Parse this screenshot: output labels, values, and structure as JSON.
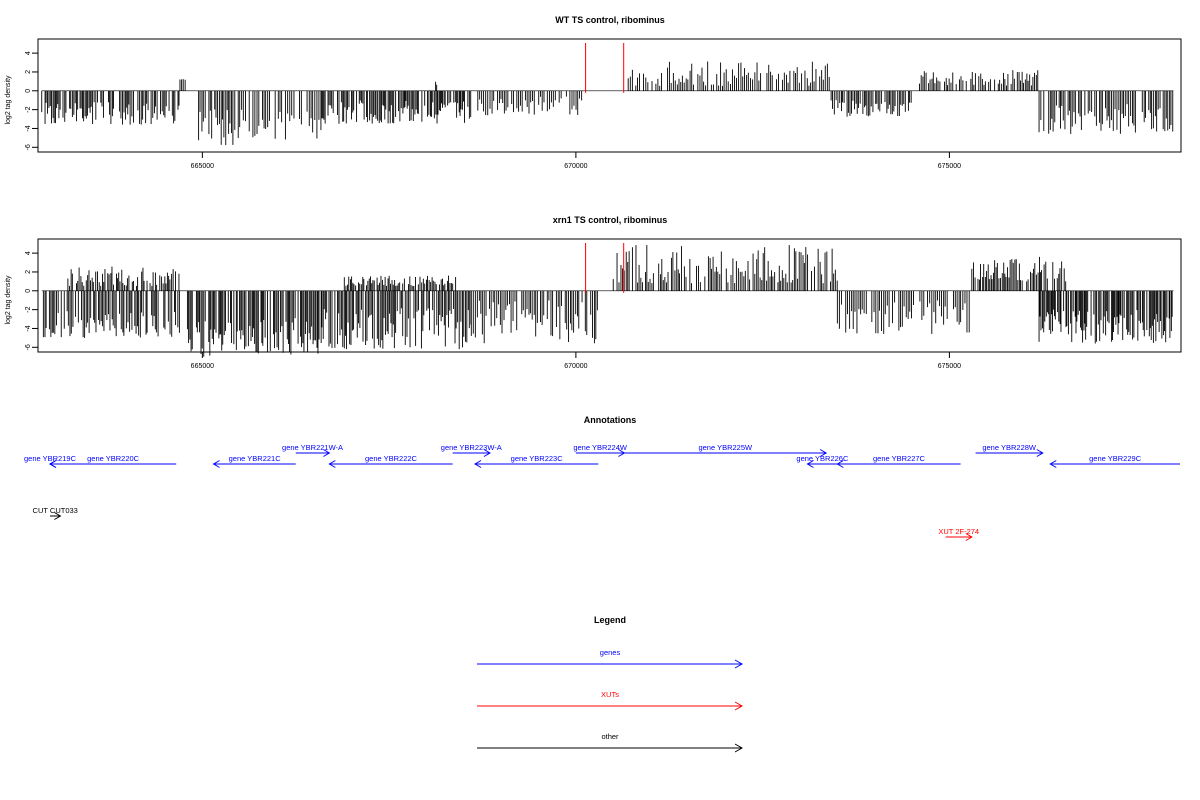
{
  "colors": {
    "genes": "#0000ff",
    "xuts": "#ff0000",
    "other": "#000000",
    "marker": "#ff0000"
  },
  "chart_data": [
    {
      "type": "bar",
      "title": "WT TS control, ribominus",
      "xlabel": "",
      "ylabel": "log2 tag density",
      "xlim": [
        662800,
        678100
      ],
      "ylim": [
        -6.5,
        5.5
      ],
      "yticks": [
        -6,
        -4,
        -2,
        0,
        2,
        4
      ],
      "xticks": [
        665000,
        670000,
        675000
      ],
      "xtick_labels": [
        "665000",
        "670000",
        "675000"
      ],
      "marker_lines": [
        670130,
        670640
      ],
      "seed": 7,
      "profile": [
        {
          "from": 662850,
          "to": 664700,
          "min": -3.6,
          "max": -1.2
        },
        {
          "from": 664700,
          "to": 664800,
          "min": 1.0,
          "max": 1.7
        },
        {
          "from": 664950,
          "to": 665500,
          "min": -5.8,
          "max": -1.8
        },
        {
          "from": 665500,
          "to": 666600,
          "min": -5.2,
          "max": -2.0
        },
        {
          "from": 666600,
          "to": 668600,
          "min": -3.5,
          "max": -1.0
        },
        {
          "from": 668100,
          "to": 668150,
          "min": 0.6,
          "max": 1.0
        },
        {
          "from": 668600,
          "to": 670100,
          "min": -2.6,
          "max": -0.6
        },
        {
          "from": 670700,
          "to": 673400,
          "min": 0.5,
          "max": 3.2
        },
        {
          "from": 673400,
          "to": 674500,
          "min": -2.8,
          "max": -0.8
        },
        {
          "from": 674600,
          "to": 676200,
          "min": 0.5,
          "max": 2.2
        },
        {
          "from": 676200,
          "to": 678000,
          "min": -4.6,
          "max": -1.4
        }
      ]
    },
    {
      "type": "bar",
      "title": "xrn1 TS control, ribominus",
      "xlabel": "",
      "ylabel": "log2 tag density",
      "xlim": [
        662800,
        678100
      ],
      "ylim": [
        -6.5,
        5.5
      ],
      "yticks": [
        -6,
        -4,
        -2,
        0,
        2,
        4
      ],
      "xticks": [
        665000,
        670000,
        675000
      ],
      "xtick_labels": [
        "665000",
        "670000",
        "675000"
      ],
      "marker_lines": [
        670130,
        670640
      ],
      "seed": 19,
      "profile": [
        {
          "from": 662850,
          "to": 664700,
          "min": -5.0,
          "max": -2.0
        },
        {
          "from": 663200,
          "to": 664700,
          "min": 0.5,
          "max": 2.6
        },
        {
          "from": 664800,
          "to": 666600,
          "min": -7.0,
          "max": -2.8
        },
        {
          "from": 666600,
          "to": 668600,
          "min": -6.2,
          "max": -1.8
        },
        {
          "from": 666900,
          "to": 668400,
          "min": 0.5,
          "max": 1.7
        },
        {
          "from": 668600,
          "to": 670300,
          "min": -5.6,
          "max": -1.0
        },
        {
          "from": 670500,
          "to": 673500,
          "min": 0.8,
          "max": 5.0
        },
        {
          "from": 673500,
          "to": 675300,
          "min": -4.6,
          "max": -1.0
        },
        {
          "from": 675300,
          "to": 676600,
          "min": 1.0,
          "max": 3.6
        },
        {
          "from": 676200,
          "to": 678000,
          "min": -5.6,
          "max": -2.0
        }
      ]
    }
  ],
  "annotations": {
    "title": "Annotations",
    "features": [
      {
        "label": "gene YBR219C",
        "start": 662480,
        "end": 662880,
        "strand": "-",
        "kind": "genes",
        "row": 0
      },
      {
        "label": "gene YBR220C",
        "start": 662880,
        "end": 664650,
        "strand": "-",
        "kind": "genes",
        "row": 0
      },
      {
        "label": "gene YBR221C",
        "start": 665150,
        "end": 666250,
        "strand": "-",
        "kind": "genes",
        "row": 0
      },
      {
        "label": "gene YBR221W-A",
        "start": 666250,
        "end": 666700,
        "strand": "+",
        "kind": "genes",
        "row": 1
      },
      {
        "label": "gene YBR222C",
        "start": 666700,
        "end": 668350,
        "strand": "-",
        "kind": "genes",
        "row": 0
      },
      {
        "label": "gene YBR223W-A",
        "start": 668350,
        "end": 668850,
        "strand": "+",
        "kind": "genes",
        "row": 1
      },
      {
        "label": "gene YBR223C",
        "start": 668650,
        "end": 670300,
        "strand": "-",
        "kind": "genes",
        "row": 0
      },
      {
        "label": "gene YBR224W",
        "start": 670000,
        "end": 670650,
        "strand": "+",
        "kind": "genes",
        "row": 1
      },
      {
        "label": "gene YBR225W",
        "start": 670650,
        "end": 673350,
        "strand": "+",
        "kind": "genes",
        "row": 1
      },
      {
        "label": "gene YBR226C",
        "start": 673100,
        "end": 673500,
        "strand": "-",
        "kind": "genes",
        "row": 0
      },
      {
        "label": "gene YBR227C",
        "start": 673500,
        "end": 675150,
        "strand": "-",
        "kind": "genes",
        "row": 0
      },
      {
        "label": "gene YBR228W",
        "start": 675350,
        "end": 676250,
        "strand": "+",
        "kind": "genes",
        "row": 1
      },
      {
        "label": "gene YBR229C",
        "start": 676350,
        "end": 678450,
        "strand": "-",
        "kind": "genes",
        "row": 0
      },
      {
        "label": "CUT CUT033",
        "start": 662800,
        "end": 663100,
        "strand": "+",
        "kind": "other",
        "row": 2
      },
      {
        "label": "XUT 2F-274",
        "start": 674950,
        "end": 675300,
        "strand": "+",
        "kind": "xuts",
        "row": 3
      }
    ]
  },
  "legend": {
    "title": "Legend",
    "items": [
      {
        "label": "genes",
        "kind": "genes"
      },
      {
        "label": "XUTs",
        "kind": "xuts"
      },
      {
        "label": "other",
        "kind": "other"
      }
    ]
  }
}
